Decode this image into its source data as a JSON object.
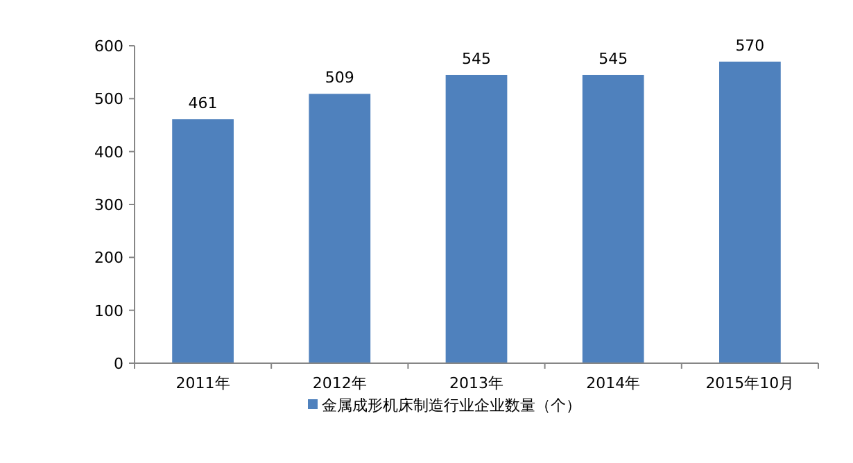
{
  "chart_data": {
    "type": "bar",
    "categories": [
      "2011年",
      "2012年",
      "2013年",
      "2014年",
      "2015年10月"
    ],
    "series": [
      {
        "name": "金属成形机床制造行业企业数量（个）",
        "color": "#4f81bd",
        "values": [
          461,
          509,
          545,
          545,
          570
        ]
      }
    ],
    "ylim": [
      0,
      600
    ],
    "yticks": [
      0,
      100,
      200,
      300,
      400,
      500,
      600
    ],
    "data_labels": true,
    "legend": "bottom"
  }
}
